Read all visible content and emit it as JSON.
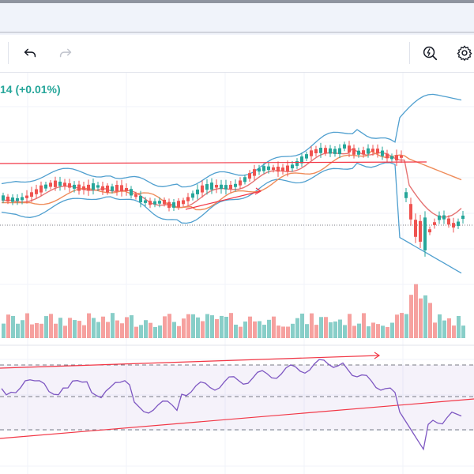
{
  "toolbar": {
    "undo_icon": "undo-icon",
    "redo_icon": "redo-icon",
    "quick_search_icon": "lightning-search-icon",
    "settings_icon": "gear-icon"
  },
  "legend": {
    "change_text": "14 (+0.01%)"
  },
  "colors": {
    "up": "#26a69a",
    "down": "#ef5350",
    "bollinger": "#4f9fcf",
    "rsi_line": "#7e57c2",
    "trend_line": "#f23645",
    "ma_fast": "#e57373",
    "ma_slow": "#ef8c5a"
  }
}
